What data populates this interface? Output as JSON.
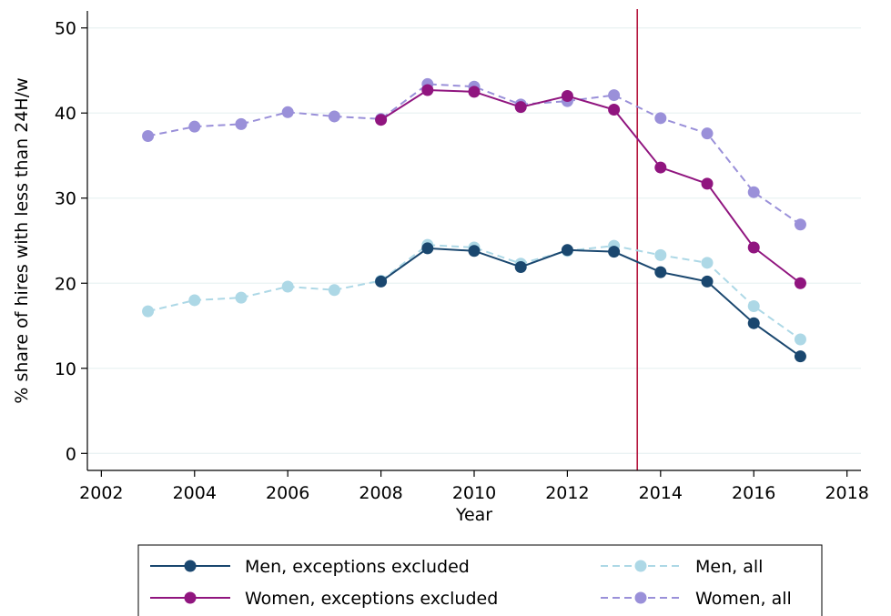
{
  "chart_data": {
    "type": "line",
    "xlabel": "Year",
    "ylabel": "% share of hires with less than 24H/w",
    "xlim": [
      2001.7,
      2018.3
    ],
    "ylim": [
      -2,
      52
    ],
    "xticks": [
      "2002",
      "2004",
      "2006",
      "2008",
      "2010",
      "2012",
      "2014",
      "2016",
      "2018"
    ],
    "yticks": [
      "0",
      "10",
      "20",
      "30",
      "40",
      "50"
    ],
    "grid": true,
    "reference_line_x": 2013.5,
    "reference_line_color": "#b5173f",
    "legend_position": "bottom",
    "series": [
      {
        "name": "Men, exceptions excluded",
        "color": "#1a476f",
        "style": "solid",
        "x": [
          2008,
          2009,
          2010,
          2011,
          2012,
          2013,
          2014,
          2015,
          2016,
          2017
        ],
        "y": [
          20.2,
          24.1,
          23.8,
          21.9,
          23.9,
          23.7,
          21.3,
          20.2,
          15.3,
          11.4
        ]
      },
      {
        "name": "Men, all",
        "color": "#add8e6",
        "style": "dashed",
        "x": [
          2003,
          2004,
          2005,
          2006,
          2007,
          2008,
          2009,
          2010,
          2011,
          2012,
          2013,
          2014,
          2015,
          2016,
          2017
        ],
        "y": [
          16.7,
          18.0,
          18.3,
          19.6,
          19.2,
          20.3,
          24.5,
          24.2,
          22.3,
          23.8,
          24.4,
          23.3,
          22.4,
          17.3,
          13.4
        ]
      },
      {
        "name": "Women, exceptions excluded",
        "color": "#90157f",
        "style": "solid",
        "x": [
          2008,
          2009,
          2010,
          2011,
          2012,
          2013,
          2014,
          2015,
          2016,
          2017
        ],
        "y": [
          39.2,
          42.7,
          42.5,
          40.7,
          42.0,
          40.4,
          33.6,
          31.7,
          24.2,
          20.0
        ]
      },
      {
        "name": "Women, all",
        "color": "#9a90d9",
        "style": "dashed",
        "x": [
          2003,
          2004,
          2005,
          2006,
          2007,
          2008,
          2009,
          2010,
          2011,
          2012,
          2013,
          2014,
          2015,
          2016,
          2017
        ],
        "y": [
          37.3,
          38.4,
          38.7,
          40.1,
          39.6,
          39.3,
          43.4,
          43.1,
          41.0,
          41.4,
          42.1,
          39.4,
          37.6,
          30.7,
          26.9
        ]
      }
    ]
  }
}
